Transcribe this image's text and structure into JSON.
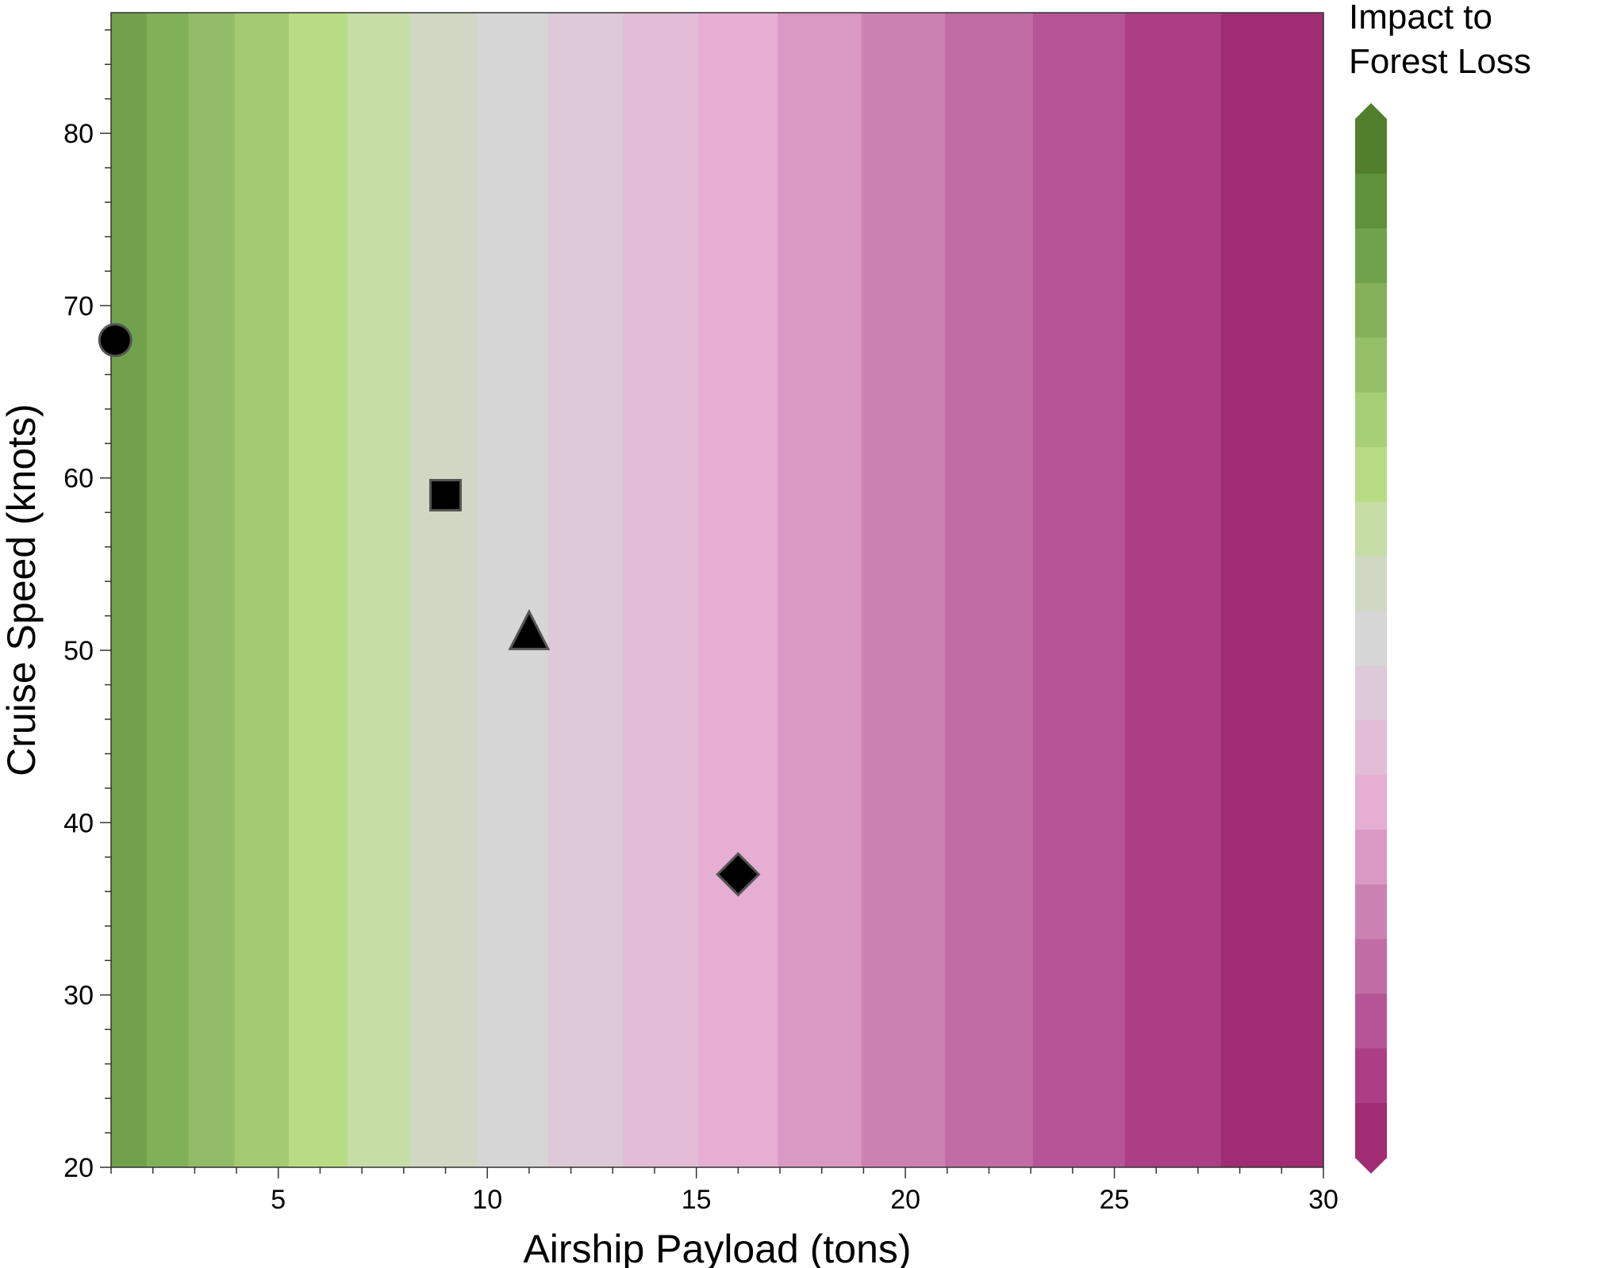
{
  "chart_data": {
    "type": "heatmap",
    "subtype": "filled-contour",
    "xlabel": "Airship Payload (tons)",
    "ylabel": "Cruise Speed (knots)",
    "colorbar_label": [
      "Impact to",
      "Forest Loss"
    ],
    "xlim": [
      1,
      30
    ],
    "ylim": [
      20,
      87
    ],
    "x_ticks": [
      5,
      10,
      15,
      20,
      25,
      30
    ],
    "y_ticks": [
      20,
      30,
      40,
      50,
      60,
      70,
      80
    ],
    "x_minor_step": 1,
    "y_minor_step": 2,
    "grid": false,
    "contour_bands": [
      {
        "x0": 1.0,
        "x1": 1.85,
        "color": "#71a24b"
      },
      {
        "x0": 1.85,
        "x1": 2.85,
        "color": "#80b058"
      },
      {
        "x0": 2.85,
        "x1": 3.95,
        "color": "#92bc67"
      },
      {
        "x0": 3.95,
        "x1": 5.25,
        "color": "#a4cb74"
      },
      {
        "x0": 5.25,
        "x1": 6.65,
        "color": "#b8dc84"
      },
      {
        "x0": 6.65,
        "x1": 8.15,
        "color": "#c6dda6"
      },
      {
        "x0": 8.15,
        "x1": 9.75,
        "color": "#d0d8c4"
      },
      {
        "x0": 9.75,
        "x1": 11.45,
        "color": "#d6d6d6"
      },
      {
        "x0": 11.45,
        "x1": 13.25,
        "color": "#ddc9d8"
      },
      {
        "x0": 13.25,
        "x1": 15.05,
        "color": "#e3bcd7"
      },
      {
        "x0": 15.05,
        "x1": 16.95,
        "color": "#e6aed3"
      },
      {
        "x0": 16.95,
        "x1": 18.95,
        "color": "#da98c5"
      },
      {
        "x0": 18.95,
        "x1": 20.95,
        "color": "#cc81b3"
      },
      {
        "x0": 20.95,
        "x1": 23.05,
        "color": "#c26ca6"
      },
      {
        "x0": 23.05,
        "x1": 25.25,
        "color": "#b65498"
      },
      {
        "x0": 25.25,
        "x1": 27.55,
        "color": "#ac3e86"
      },
      {
        "x0": 27.55,
        "x1": 30.0,
        "color": "#a02c74"
      }
    ],
    "colorbar_colors": [
      "#527f2b",
      "#5f913a",
      "#70a24b",
      "#84b15a",
      "#95c068",
      "#a6cf76",
      "#b8dc84",
      "#c6dda6",
      "#d0d8c4",
      "#d6d6d6",
      "#ddc9d8",
      "#e3bcd7",
      "#e6aed3",
      "#da98c5",
      "#cc81b3",
      "#c26ca6",
      "#b65498",
      "#ac3e86",
      "#a02c74"
    ],
    "colorbar_extend": "both",
    "markers": [
      {
        "shape": "circle",
        "x": 1.1,
        "y": 68
      },
      {
        "shape": "square",
        "x": 9.0,
        "y": 59
      },
      {
        "shape": "triangle",
        "x": 11.0,
        "y": 51
      },
      {
        "shape": "diamond",
        "x": 16.0,
        "y": 37
      }
    ],
    "marker_color": "#000000",
    "marker_edge": "#555555"
  }
}
